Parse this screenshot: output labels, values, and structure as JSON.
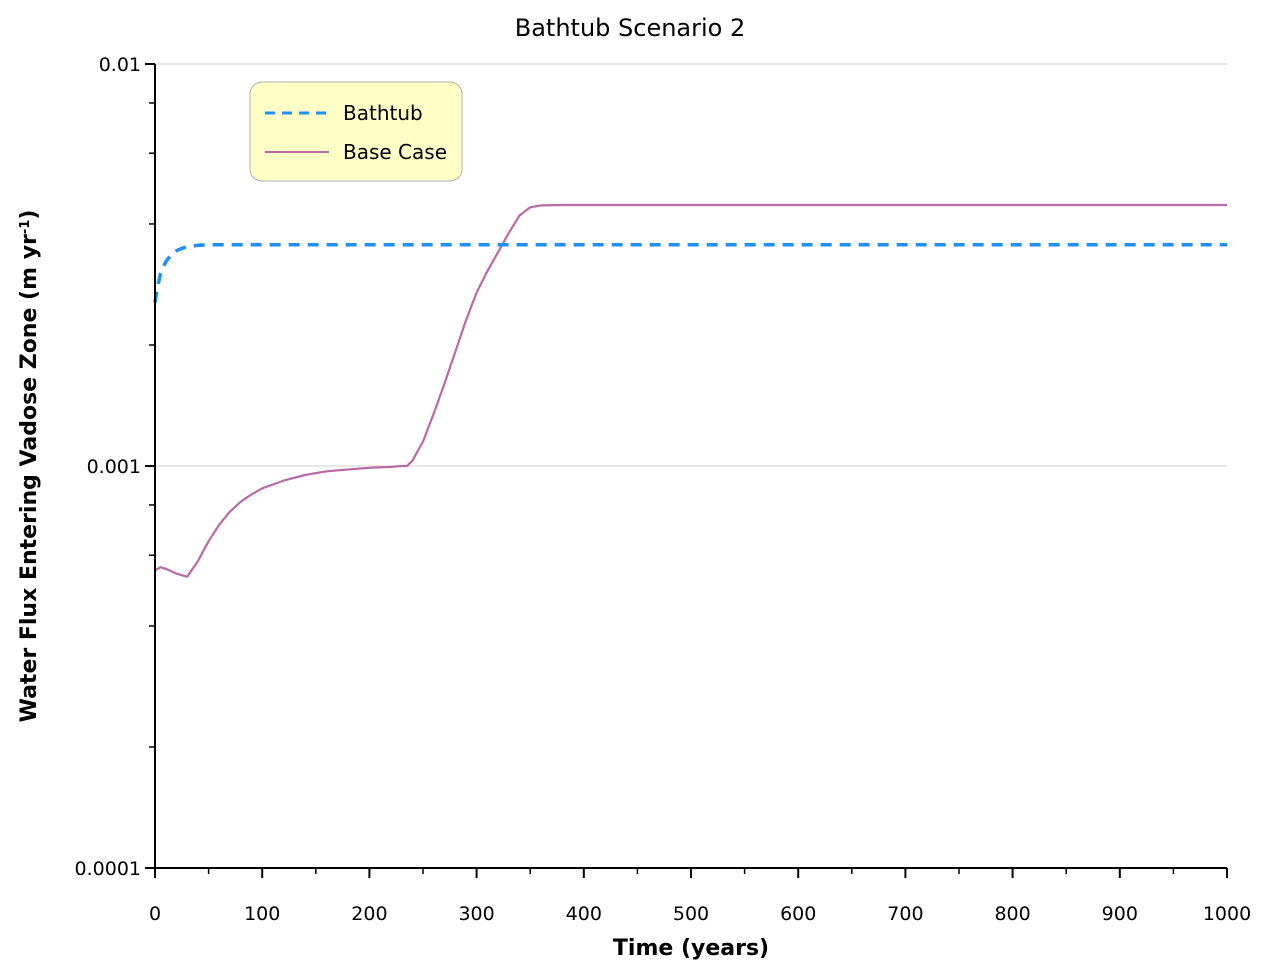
{
  "chart_data": {
    "type": "line",
    "title": "Bathtub Scenario 2",
    "xlabel": "Time (years)",
    "ylabel_main": "Water Flux Entering Vadose Zone (m yr",
    "ylabel_sup": "-1",
    "ylabel_close": ")",
    "xlim": [
      0,
      1000
    ],
    "ylim": [
      0.0001,
      0.01
    ],
    "yscale": "log",
    "x_ticks": [
      0,
      100,
      200,
      300,
      400,
      500,
      600,
      700,
      800,
      900,
      1000
    ],
    "x_tick_labels": [
      "0",
      "100",
      "200",
      "300",
      "400",
      "500",
      "600",
      "700",
      "800",
      "900",
      "1000"
    ],
    "y_ticks": [
      0.0001,
      0.001,
      0.01
    ],
    "y_tick_labels": [
      "0.0001",
      "0.001",
      "0.01"
    ],
    "grid": "horizontal-major",
    "legend_position": "top-left",
    "series": [
      {
        "name": "Bathtub",
        "color": "#1e90ff",
        "style": "dashed",
        "x": [
          0,
          2,
          5,
          10,
          15,
          20,
          25,
          30,
          40,
          50,
          60,
          80,
          100,
          200,
          300,
          400,
          500,
          600,
          700,
          800,
          900,
          1000
        ],
        "y": [
          0.00255,
          0.00275,
          0.003,
          0.00322,
          0.00335,
          0.00343,
          0.00348,
          0.00351,
          0.00354,
          0.00355,
          0.00355,
          0.00355,
          0.00355,
          0.00355,
          0.00355,
          0.00355,
          0.00355,
          0.00355,
          0.00355,
          0.00355,
          0.00355,
          0.00355
        ]
      },
      {
        "name": "Base Case",
        "color": "#b86aa6",
        "style": "solid",
        "x": [
          0,
          5,
          10,
          20,
          30,
          40,
          50,
          60,
          70,
          80,
          90,
          100,
          120,
          140,
          160,
          180,
          200,
          220,
          230,
          235,
          240,
          250,
          260,
          270,
          280,
          290,
          300,
          310,
          320,
          330,
          340,
          350,
          360,
          380,
          400,
          500,
          600,
          700,
          800,
          900,
          1000
        ],
        "y": [
          0.00055,
          0.00056,
          0.000555,
          0.00054,
          0.00053,
          0.00058,
          0.00065,
          0.000715,
          0.00077,
          0.000815,
          0.00085,
          0.00088,
          0.00092,
          0.00095,
          0.00097,
          0.00098,
          0.00099,
          0.000995,
          0.001,
          0.001,
          0.00103,
          0.00115,
          0.00135,
          0.0016,
          0.00192,
          0.0023,
          0.0027,
          0.00305,
          0.0034,
          0.0038,
          0.0042,
          0.0044,
          0.00445,
          0.00446,
          0.00446,
          0.00446,
          0.00446,
          0.00446,
          0.00446,
          0.00446,
          0.00446
        ]
      }
    ]
  }
}
